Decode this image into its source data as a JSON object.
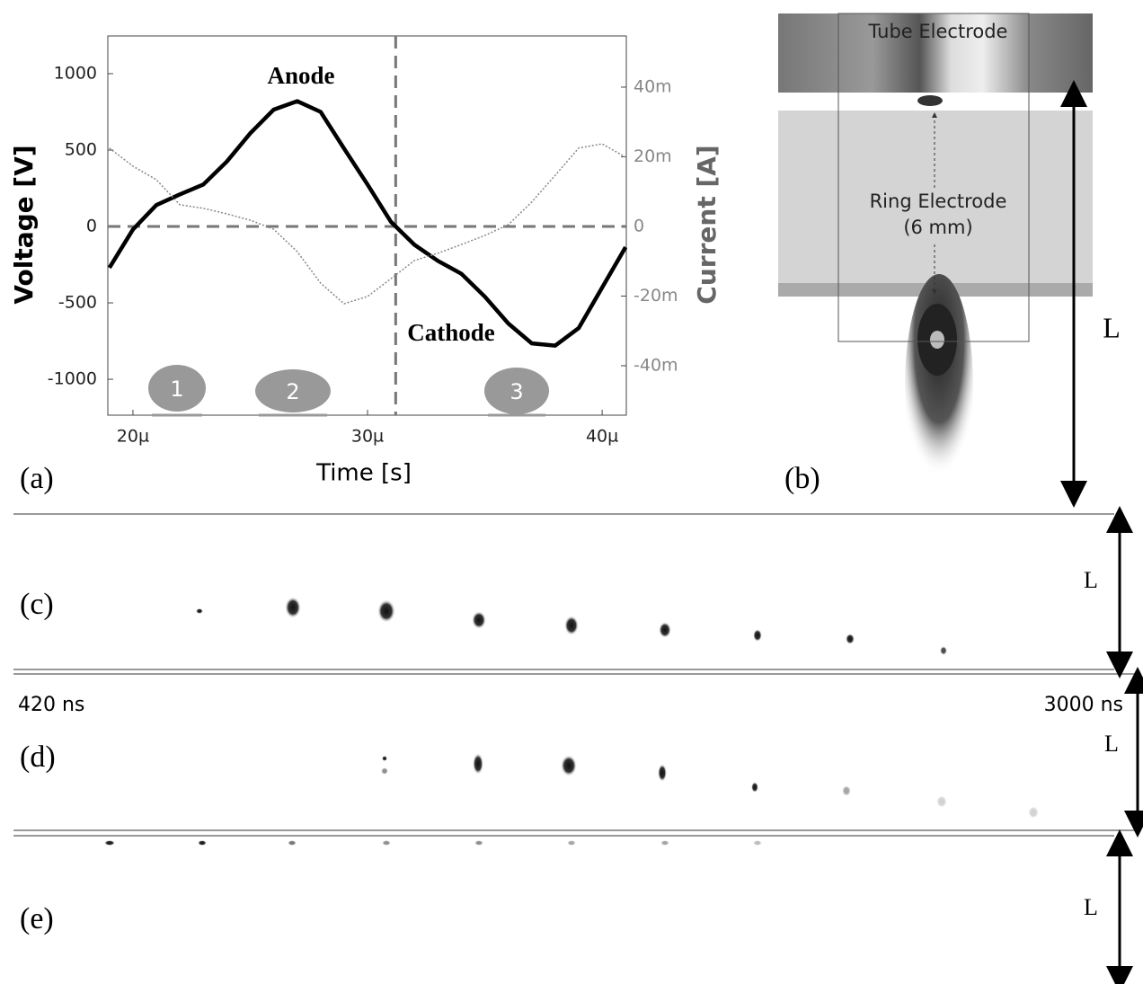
{
  "chart_data": {
    "type": "line",
    "xlabel": "Time [s]",
    "ylabel": "Voltage [V]",
    "y2label": "Current [A]",
    "x": [
      1.9e-05,
      2e-05,
      2.1e-05,
      2.2e-05,
      2.3e-05,
      2.4e-05,
      2.5e-05,
      2.6e-05,
      2.7e-05,
      2.8e-05,
      2.9e-05,
      3e-05,
      3.1e-05,
      3.2e-05,
      3.3e-05,
      3.4e-05,
      3.5e-05,
      3.6e-05,
      3.7e-05,
      3.8e-05,
      3.9e-05,
      4e-05,
      4.1e-05
    ],
    "series": [
      {
        "color": "#000000",
        "values": [
          -270,
          -20,
          140,
          210,
          275,
          425,
          610,
          765,
          820,
          750,
          510,
          275,
          30,
          -120,
          -225,
          -310,
          -460,
          -635,
          -765,
          -780,
          -665,
          -400,
          -135
        ]
      },
      {
        "color": "#888888",
        "axis": "y2",
        "values": [
          0.0225,
          0.0173,
          0.0134,
          0.0062,
          0.0052,
          0.0036,
          0.0018,
          -0.0008,
          -0.0072,
          -0.0163,
          -0.0222,
          -0.0201,
          -0.015,
          -0.0098,
          -0.0077,
          -0.0052,
          -0.0026,
          0.0005,
          0.007,
          0.0147,
          0.0225,
          0.0237,
          0.0199
        ]
      }
    ],
    "xlim": [
      1.893e-05,
      4.103e-05
    ],
    "xticks": [
      {
        "value": 2e-05,
        "label": "20µ"
      },
      {
        "value": 3e-05,
        "label": "30µ"
      },
      {
        "value": 4e-05,
        "label": "40µ"
      }
    ],
    "ylim": [
      -1235,
      1247
    ],
    "yticks": [
      -1000,
      -500,
      0,
      500,
      1000
    ],
    "y2lim": [
      -0.0542,
      0.0547
    ],
    "y2ticks": [
      {
        "value": -0.04,
        "label": "-40m"
      },
      {
        "value": -0.02,
        "label": "-20m"
      },
      0,
      {
        "value": 0.02,
        "label": "20m"
      },
      {
        "value": 0.04,
        "label": "40m"
      }
    ],
    "hline": 0,
    "vline": 3.12e-05,
    "annotations": [
      "Anode",
      "Cathode",
      "1",
      "2",
      "3"
    ]
  },
  "figure": {
    "panel_labels": [
      "(a)",
      "(b)",
      "(c)",
      "(d)",
      "(e)"
    ],
    "tube_electrode": "Tube Electrode",
    "ring_electrode": "Ring Electrode",
    "ring_size": "(6 mm)",
    "length_labels": [
      "L",
      "L",
      "L",
      "L"
    ],
    "time_start": "420 ns",
    "time_end": "3000 ns"
  }
}
